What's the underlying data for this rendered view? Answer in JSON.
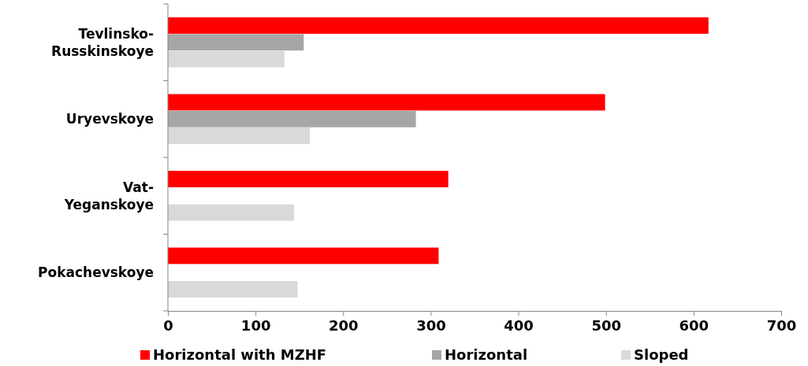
{
  "chart_data": {
    "type": "bar",
    "orientation": "horizontal",
    "categories": [
      "Tevlinsko-Russkinskoye",
      "Uryevskoye",
      "Vat-Yeganskoye",
      "Pokachevskoye"
    ],
    "series": [
      {
        "name": "Horizontal with MZHF",
        "color": "#ff0000",
        "values": [
          617,
          499,
          320,
          309
        ]
      },
      {
        "name": "Horizontal",
        "color": "#a6a6a6",
        "values": [
          155,
          283,
          null,
          null
        ]
      },
      {
        "name": "Sloped",
        "color": "#d9d9d9",
        "values": [
          133,
          162,
          144,
          148
        ]
      }
    ],
    "xlim": [
      0,
      700
    ],
    "xticks": [
      0,
      100,
      200,
      300,
      400,
      500,
      600,
      700
    ],
    "grid": false,
    "legend": "bottom"
  }
}
